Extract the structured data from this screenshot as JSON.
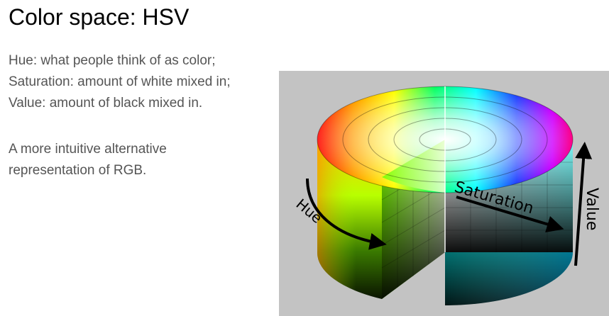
{
  "slide": {
    "title": "Color space: HSV",
    "paragraph1": [
      "Hue: what people think of as color;",
      "Saturation: amount of white mixed in;",
      "Value: amount of black mixed in."
    ],
    "paragraph2": [
      "A more intuitive alternative",
      "representation of RGB."
    ]
  },
  "figure": {
    "labels": {
      "hue": "Hue",
      "saturation": "Saturation",
      "value": "Value"
    },
    "colors": {
      "background": "#c3c3c3",
      "arrow": "#000000"
    }
  }
}
